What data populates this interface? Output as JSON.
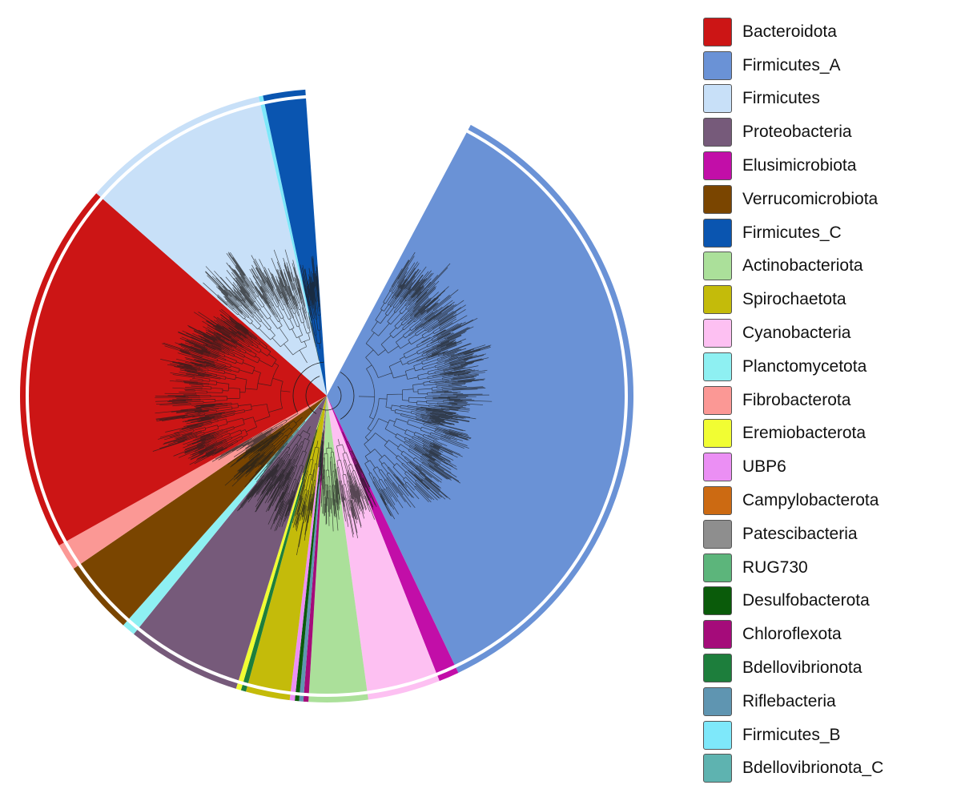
{
  "legend": {
    "items": [
      {
        "label": "Bacteroidota",
        "color": "#cc1515"
      },
      {
        "label": "Firmicutes_A",
        "color": "#6a92d6"
      },
      {
        "label": "Firmicutes",
        "color": "#c8e0f8"
      },
      {
        "label": "Proteobacteria",
        "color": "#765a7a"
      },
      {
        "label": "Elusimicrobiota",
        "color": "#c20ea8"
      },
      {
        "label": "Verrucomicrobiota",
        "color": "#7a4500"
      },
      {
        "label": "Firmicutes_C",
        "color": "#0a55b0"
      },
      {
        "label": "Actinobacteriota",
        "color": "#abe09a"
      },
      {
        "label": "Spirochaetota",
        "color": "#c4bb0a"
      },
      {
        "label": "Cyanobacteria",
        "color": "#fdc0f2"
      },
      {
        "label": "Planctomycetota",
        "color": "#8ef0f2"
      },
      {
        "label": "Fibrobacterota",
        "color": "#fb9895"
      },
      {
        "label": "Eremiobacterota",
        "color": "#f1fd33"
      },
      {
        "label": "UBP6",
        "color": "#eb8ff4"
      },
      {
        "label": "Campylobacterota",
        "color": "#cc6a12"
      },
      {
        "label": "Patescibacteria",
        "color": "#8e8e8e"
      },
      {
        "label": "RUG730",
        "color": "#5cb57b"
      },
      {
        "label": "Desulfobacterota",
        "color": "#0a5b0a"
      },
      {
        "label": "Chloroflexota",
        "color": "#a50b7a"
      },
      {
        "label": "Bdellovibrionota",
        "color": "#1d7e3c"
      },
      {
        "label": "Riflebacteria",
        "color": "#5f95b1"
      },
      {
        "label": "Firmicutes_B",
        "color": "#7ee8fa"
      },
      {
        "label": "Bdellovibrionota_C",
        "color": "#5eb3b0"
      }
    ]
  },
  "tree": {
    "clades": [
      {
        "phylum": "Firmicutes_A",
        "share": 39.5,
        "color": "#6a92d6"
      },
      {
        "phylum": "Elusimicrobiota",
        "share": 1.2,
        "color": "#c20ea8"
      },
      {
        "phylum": "Cyanobacteria",
        "share": 4.3,
        "color": "#fdc0f2"
      },
      {
        "phylum": "Actinobacteriota",
        "share": 3.5,
        "color": "#abe09a"
      },
      {
        "phylum": "Chloroflexota",
        "share": 0.3,
        "color": "#a50b7a"
      },
      {
        "phylum": "Riflebacteria",
        "share": 0.25,
        "color": "#5f95b1"
      },
      {
        "phylum": "Desulfobacterota",
        "share": 0.25,
        "color": "#0a5b0a"
      },
      {
        "phylum": "UBP6",
        "share": 0.3,
        "color": "#eb8ff4"
      },
      {
        "phylum": "Spirochaetota",
        "share": 2.6,
        "color": "#c4bb0a"
      },
      {
        "phylum": "Bdellovibrionota",
        "share": 0.3,
        "color": "#1d7e3c"
      },
      {
        "phylum": "Eremiobacterota",
        "share": 0.3,
        "color": "#f1fd33"
      },
      {
        "phylum": "Proteobacteria",
        "share": 6.8,
        "color": "#765a7a"
      },
      {
        "phylum": "Planctomycetota",
        "share": 0.8,
        "color": "#8ef0f2"
      },
      {
        "phylum": "Verrucomicrobiota",
        "share": 4.4,
        "color": "#7a4500"
      },
      {
        "phylum": "Fibrobacterota",
        "share": 1.6,
        "color": "#fb9895"
      },
      {
        "phylum": "Bacteroidota",
        "share": 22.0,
        "color": "#cc1515"
      },
      {
        "phylum": "Firmicutes",
        "share": 11.2,
        "color": "#c8e0f8"
      },
      {
        "phylum": "Firmicutes_B",
        "share": 0.25,
        "color": "#7ee8fa"
      },
      {
        "phylum": "Firmicutes_C",
        "share": 2.5,
        "color": "#0a55b0"
      }
    ]
  }
}
